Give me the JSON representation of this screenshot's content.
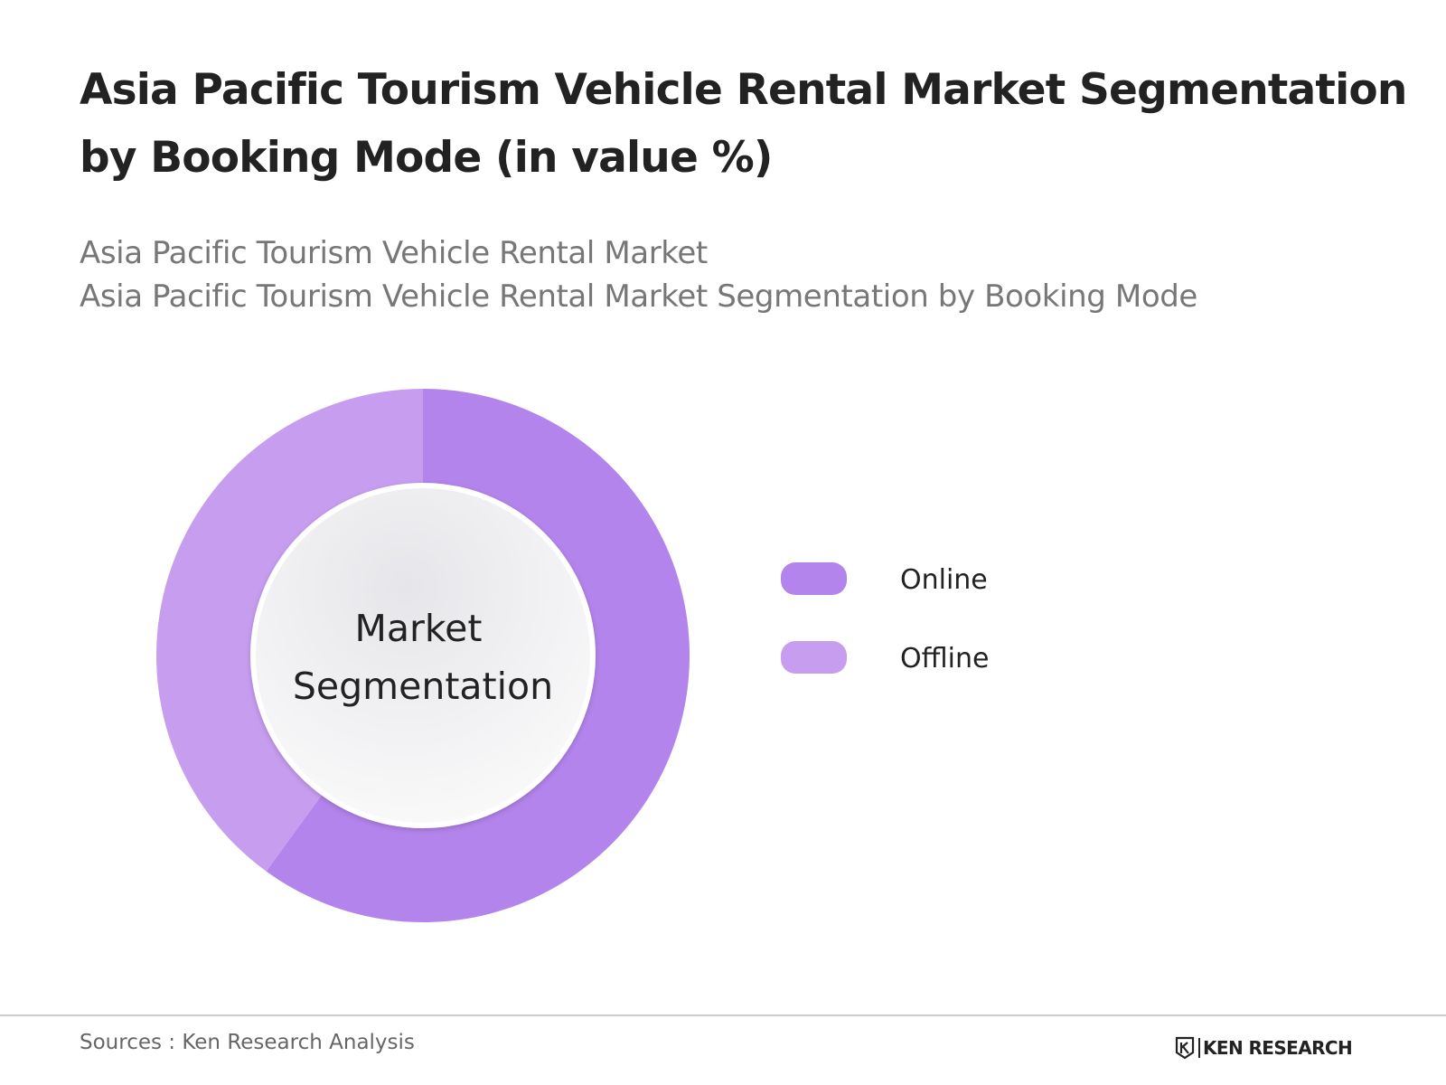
{
  "header": {
    "title": "Asia Pacific Tourism Vehicle Rental Market Segmentation by Booking Mode (in value %)",
    "subtitle_1": "Asia Pacific Tourism Vehicle Rental Market",
    "subtitle_2": "Asia Pacific Tourism Vehicle Rental Market Segmentation by Booking Mode"
  },
  "chart_data": {
    "type": "pie",
    "variant": "donut",
    "center_label_line1": "Market",
    "center_label_line2": "Segmentation",
    "categories": [
      "Online",
      "Offline"
    ],
    "values": [
      60,
      40
    ],
    "unit": "%",
    "colors": [
      "#b384ec",
      "#c79df0"
    ],
    "start_angle_deg": 0,
    "direction": "clockwise",
    "legend_position": "right"
  },
  "footer": {
    "source": "Sources : Ken Research Analysis",
    "logo_text": "KEN RESEARCH"
  }
}
